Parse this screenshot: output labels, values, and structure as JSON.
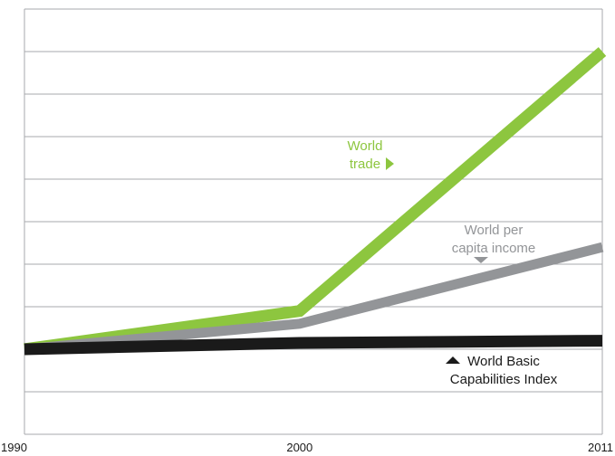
{
  "chart_data": {
    "type": "line",
    "x": [
      1990,
      2000,
      2011
    ],
    "xlim": [
      1990,
      2011
    ],
    "ylim": [
      0,
      10
    ],
    "grid": true,
    "yticks": [
      0,
      1,
      2,
      3,
      4,
      5,
      6,
      7,
      8,
      9,
      10
    ],
    "series": [
      {
        "name": "World trade",
        "label_lines": [
          "World",
          "trade"
        ],
        "label_marker": "right-triangle",
        "color": "#8DC63F",
        "values": [
          2.0,
          2.9,
          9.0
        ]
      },
      {
        "name": "World per capita income",
        "label_lines": [
          "World per",
          "capita income"
        ],
        "label_marker": "down-triangle",
        "color": "#939598",
        "values": [
          2.0,
          2.6,
          4.4
        ]
      },
      {
        "name": "World Basic Capabilities Index",
        "label_lines": [
          "World Basic",
          "Capabilities Index"
        ],
        "label_marker": "up-triangle",
        "color": "#1a1a1a",
        "values": [
          2.0,
          2.15,
          2.2
        ]
      }
    ]
  }
}
